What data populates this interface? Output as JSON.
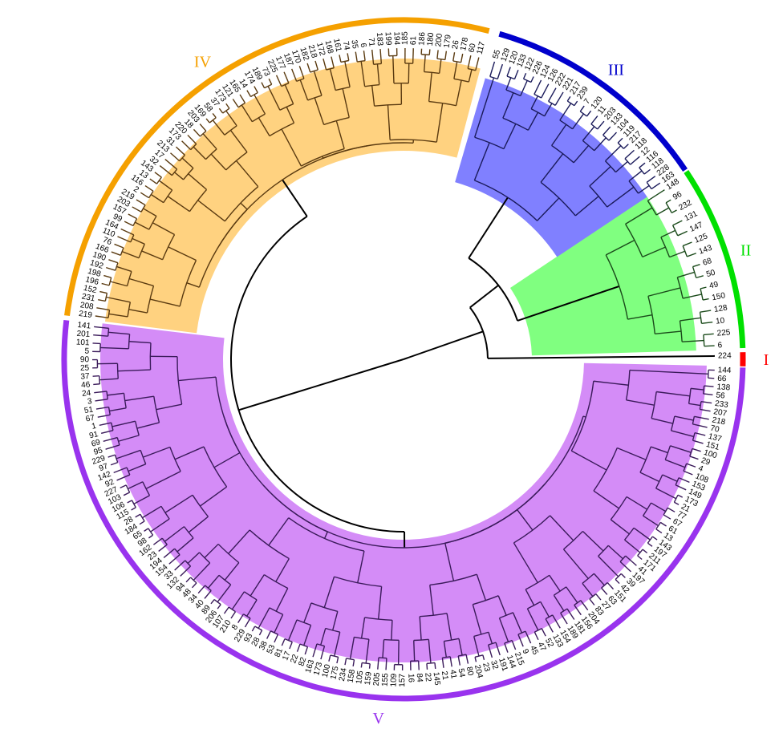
{
  "diagram": {
    "type": "circular-dendrogram",
    "groups": [
      {
        "id": "I",
        "label": "I",
        "color": "#ff0000",
        "fill": null,
        "leaves": [
          "224"
        ]
      },
      {
        "id": "II",
        "label": "II",
        "color": "#00e000",
        "fill": "#80ff80",
        "leaves": [
          "6",
          "225",
          "10",
          "128",
          "150",
          "49",
          "50",
          "68",
          "143",
          "125",
          "147",
          "131",
          "232",
          "96",
          "148"
        ]
      },
      {
        "id": "III",
        "label": "III",
        "color": "#0000cc",
        "fill": "#8080ff",
        "leaves": [
          "163",
          "228",
          "118",
          "116",
          "12",
          "118",
          "217",
          "119",
          "104",
          "133",
          "203",
          "11",
          "120",
          "7",
          "239",
          "217",
          "221",
          "222",
          "126",
          "124",
          "226",
          "122",
          "133",
          "120",
          "129",
          "55"
        ]
      },
      {
        "id": "IV",
        "label": "IV",
        "color": "#f5a000",
        "fill": "#ffd280",
        "leaves": [
          "117",
          "60",
          "178",
          "26",
          "179",
          "200",
          "180",
          "186",
          "61",
          "185",
          "194",
          "199",
          "183",
          "71",
          "6",
          "35",
          "74",
          "161",
          "168",
          "172",
          "218",
          "182",
          "170",
          "187",
          "177",
          "225",
          "73",
          "189",
          "174",
          "14",
          "165",
          "121",
          "173",
          "37",
          "58",
          "169",
          "203",
          "18",
          "220",
          "173",
          "31",
          "213",
          "17",
          "32",
          "143",
          "13",
          "116",
          "2",
          "219",
          "203",
          "157",
          "99",
          "164",
          "110",
          "76",
          "166",
          "190",
          "192",
          "198",
          "196",
          "152",
          "231",
          "208",
          "219"
        ]
      },
      {
        "id": "V",
        "label": "V",
        "color": "#9933ee",
        "fill": "#d48cf7",
        "leaves": [
          "141",
          "201",
          "101",
          "5",
          "90",
          "25",
          "37",
          "46",
          "24",
          "3",
          "51",
          "67",
          "1",
          "91",
          "69",
          "95",
          "229",
          "97",
          "142",
          "92",
          "227",
          "103",
          "106",
          "115",
          "28",
          "184",
          "65",
          "98",
          "162",
          "23",
          "194",
          "154",
          "33",
          "132",
          "94",
          "48",
          "34",
          "40",
          "89",
          "206",
          "107",
          "210",
          "8",
          "229",
          "93",
          "28",
          "38",
          "53",
          "81",
          "17",
          "22",
          "82",
          "163",
          "173",
          "100",
          "175",
          "234",
          "158",
          "105",
          "159",
          "205",
          "155",
          "109",
          "157",
          "16",
          "84",
          "22",
          "145",
          "21",
          "41",
          "54",
          "80",
          "204",
          "23",
          "32",
          "191",
          "144",
          "215",
          "9",
          "45",
          "47",
          "52",
          "133",
          "154",
          "189",
          "181",
          "156",
          "204",
          "83",
          "27",
          "63",
          "151",
          "42",
          "39",
          "197",
          "41",
          "171",
          "211",
          "197",
          "143",
          "13",
          "61",
          "67",
          "77",
          "21",
          "173",
          "149",
          "153",
          "108",
          "4",
          "29",
          "100",
          "151",
          "137",
          "70",
          "218",
          "207",
          "233",
          "56",
          "138",
          "66",
          "144"
        ]
      }
    ]
  }
}
